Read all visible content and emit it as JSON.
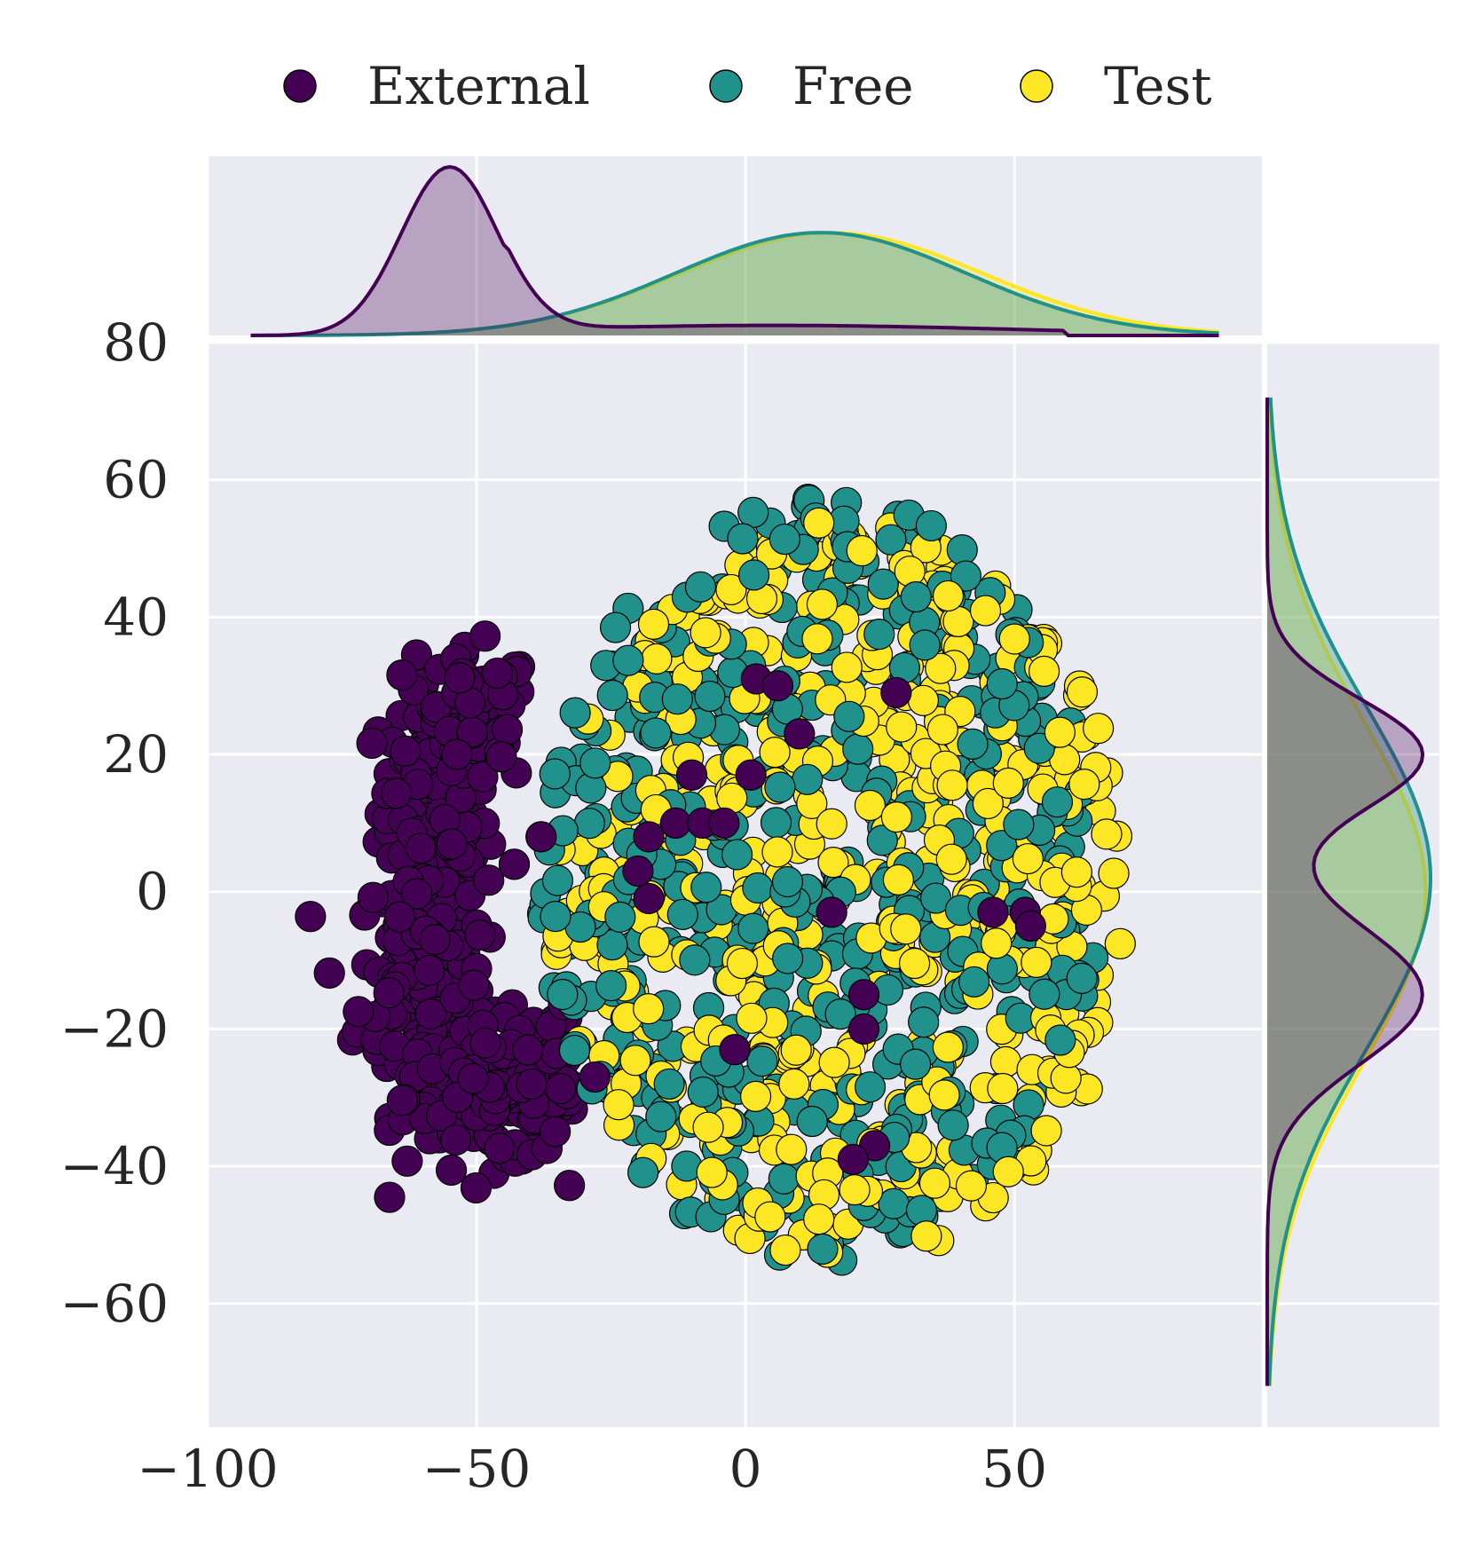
{
  "chart_data": {
    "type": "scatter",
    "subtype": "jointplot",
    "title": "",
    "xlabel": "",
    "ylabel": "",
    "xlim": [
      -100,
      96
    ],
    "ylim": [
      -78,
      80
    ],
    "x_ticks": [
      -100,
      -50,
      0,
      50
    ],
    "x_tick_labels": [
      "−100",
      "−50",
      "0",
      "50"
    ],
    "y_ticks": [
      -60,
      -40,
      -20,
      0,
      20,
      40,
      60,
      80
    ],
    "y_tick_labels": [
      "−60",
      "−40",
      "−20",
      "0",
      "20",
      "40",
      "60",
      "80"
    ],
    "grid": true,
    "legend_position": "top",
    "series": [
      {
        "name": "External",
        "color": "#440154",
        "clusters": [
          {
            "cx": -58,
            "cy": 12,
            "sx": 5,
            "sy": 9,
            "n": 130
          },
          {
            "cx": -60,
            "cy": -14,
            "sx": 6,
            "sy": 9,
            "n": 140
          },
          {
            "cx": -47,
            "cy": -30,
            "sx": 8,
            "sy": 5,
            "n": 110
          },
          {
            "cx": -50,
            "cy": 25,
            "sx": 5,
            "sy": 5,
            "n": 60
          },
          {
            "cx": -38,
            "cy": -26,
            "sx": 7,
            "sy": 4,
            "n": 50
          }
        ],
        "scattered_points": [
          [
            -38,
            8
          ],
          [
            -43,
            4
          ],
          [
            2,
            31
          ],
          [
            6,
            30
          ],
          [
            10,
            23
          ],
          [
            1,
            17
          ],
          [
            -10,
            17
          ],
          [
            -18,
            8
          ],
          [
            -13,
            10
          ],
          [
            -8,
            10
          ],
          [
            -4,
            10
          ],
          [
            -20,
            3
          ],
          [
            -18,
            -1
          ],
          [
            16,
            -3
          ],
          [
            46,
            -3
          ],
          [
            52,
            -3
          ],
          [
            53,
            -5
          ],
          [
            22,
            -15
          ],
          [
            22,
            -20
          ],
          [
            -2,
            -23
          ],
          [
            24,
            -37
          ],
          [
            20,
            -39
          ],
          [
            28,
            29
          ],
          [
            -28,
            -27
          ]
        ],
        "kde_x": {
          "peak_x": -55,
          "peak_density": 1.0,
          "tail": "right"
        },
        "kde_y": {
          "peaks_y": [
            20,
            -15
          ],
          "density": 0.95
        }
      },
      {
        "name": "Free",
        "color": "#21918c",
        "disk": {
          "cx": 14,
          "cy": 2,
          "rx": 52,
          "ry": 56,
          "n": 520
        },
        "kde_x": {
          "peak_x": 14,
          "peak_density": 0.61
        },
        "kde_y": {
          "peak_y": 2,
          "density": 1.0
        }
      },
      {
        "name": "Test",
        "color": "#fde725",
        "disk": {
          "cx": 18,
          "cy": 0,
          "rx": 54,
          "ry": 54,
          "n": 520
        },
        "kde_x": {
          "peak_x": 16,
          "peak_density": 0.61
        },
        "kde_y": {
          "peak_y": 0,
          "density": 1.0
        }
      }
    ]
  }
}
